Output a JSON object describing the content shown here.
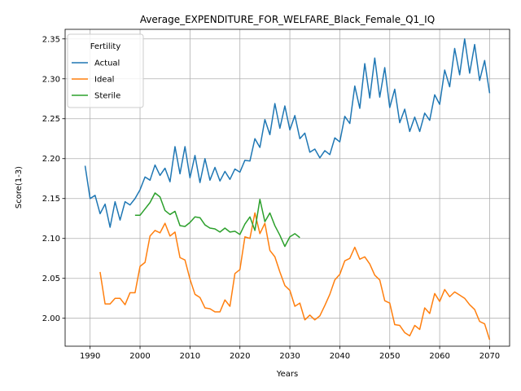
{
  "chart_data": {
    "type": "line",
    "title": "Average_EXPENDITURE_FOR_WELFARE_Black_Female_Q1_IQ",
    "xlabel": "Years",
    "ylabel": "Score(1-3)",
    "xlim": [
      1985.0,
      2074.0
    ],
    "ylim": [
      1.965,
      2.362
    ],
    "xticks": [
      1990,
      2000,
      2010,
      2020,
      2030,
      2040,
      2050,
      2060,
      2070
    ],
    "yticks": [
      2.0,
      2.05,
      2.1,
      2.15,
      2.2,
      2.25,
      2.3,
      2.35
    ],
    "ytick_labels": [
      "2.00",
      "2.05",
      "2.10",
      "2.15",
      "2.20",
      "2.25",
      "2.30",
      "2.35"
    ],
    "grid": true,
    "legend": {
      "title": "Fertility",
      "position": "top-left"
    },
    "series": [
      {
        "name": "Actual",
        "color": "#1f77b4",
        "x": [
          1989,
          1990,
          1991,
          1992,
          1993,
          1994,
          1995,
          1996,
          1997,
          1998,
          1999,
          2000,
          2001,
          2002,
          2003,
          2004,
          2005,
          2006,
          2007,
          2008,
          2009,
          2010,
          2011,
          2012,
          2013,
          2014,
          2015,
          2016,
          2017,
          2018,
          2019,
          2020,
          2021,
          2022,
          2023,
          2024,
          2025,
          2026,
          2027,
          2028,
          2029,
          2030,
          2031,
          2032,
          2033,
          2034,
          2035,
          2036,
          2037,
          2038,
          2039,
          2040,
          2041,
          2042,
          2043,
          2044,
          2045,
          2046,
          2047,
          2048,
          2049,
          2050,
          2051,
          2052,
          2053,
          2054,
          2055,
          2056,
          2057,
          2058,
          2059,
          2060,
          2061,
          2062,
          2063,
          2064,
          2065,
          2066,
          2067,
          2068,
          2069,
          2070
        ],
        "y": [
          2.191,
          2.15,
          2.154,
          2.131,
          2.143,
          2.114,
          2.146,
          2.123,
          2.146,
          2.142,
          2.15,
          2.161,
          2.177,
          2.173,
          2.192,
          2.179,
          2.188,
          2.171,
          2.215,
          2.181,
          2.215,
          2.176,
          2.204,
          2.17,
          2.2,
          2.173,
          2.189,
          2.172,
          2.184,
          2.174,
          2.187,
          2.183,
          2.198,
          2.197,
          2.225,
          2.214,
          2.249,
          2.23,
          2.269,
          2.238,
          2.266,
          2.236,
          2.254,
          2.225,
          2.232,
          2.208,
          2.212,
          2.201,
          2.21,
          2.205,
          2.226,
          2.221,
          2.253,
          2.244,
          2.291,
          2.263,
          2.319,
          2.276,
          2.326,
          2.277,
          2.314,
          2.264,
          2.287,
          2.245,
          2.262,
          2.234,
          2.252,
          2.234,
          2.257,
          2.248,
          2.28,
          2.268,
          2.311,
          2.29,
          2.338,
          2.305,
          2.35,
          2.307,
          2.343,
          2.298,
          2.323,
          2.282
        ]
      },
      {
        "name": "Ideal",
        "color": "#ff7f0e",
        "x": [
          1992,
          1993,
          1994,
          1995,
          1996,
          1997,
          1998,
          1999,
          2000,
          2001,
          2002,
          2003,
          2004,
          2005,
          2006,
          2007,
          2008,
          2009,
          2010,
          2011,
          2012,
          2013,
          2014,
          2015,
          2016,
          2017,
          2018,
          2019,
          2020,
          2021,
          2022,
          2023,
          2024,
          2025,
          2026,
          2027,
          2028,
          2029,
          2030,
          2031,
          2032,
          2033,
          2034,
          2035,
          2036,
          2037,
          2038,
          2039,
          2040,
          2041,
          2042,
          2043,
          2044,
          2045,
          2046,
          2047,
          2048,
          2049,
          2050,
          2051,
          2052,
          2053,
          2054,
          2055,
          2056,
          2057,
          2058,
          2059,
          2060,
          2061,
          2062,
          2063,
          2064,
          2065,
          2066,
          2067,
          2068,
          2069,
          2070
        ],
        "y": [
          2.058,
          2.018,
          2.018,
          2.025,
          2.025,
          2.017,
          2.032,
          2.032,
          2.065,
          2.07,
          2.103,
          2.11,
          2.107,
          2.119,
          2.103,
          2.108,
          2.076,
          2.073,
          2.049,
          2.03,
          2.026,
          2.013,
          2.012,
          2.008,
          2.008,
          2.023,
          2.015,
          2.056,
          2.061,
          2.102,
          2.1,
          2.132,
          2.106,
          2.119,
          2.085,
          2.077,
          2.058,
          2.041,
          2.035,
          2.015,
          2.019,
          1.998,
          2.004,
          1.998,
          2.003,
          2.016,
          2.03,
          2.048,
          2.055,
          2.072,
          2.075,
          2.089,
          2.074,
          2.077,
          2.068,
          2.054,
          2.048,
          2.022,
          2.019,
          1.992,
          1.991,
          1.982,
          1.978,
          1.991,
          1.986,
          2.013,
          2.006,
          2.031,
          2.021,
          2.036,
          2.027,
          2.033,
          2.029,
          2.025,
          2.017,
          2.011,
          1.996,
          1.993,
          1.973
        ]
      },
      {
        "name": "Sterile",
        "color": "#2ca02c",
        "x": [
          1999,
          2000,
          2001,
          2002,
          2003,
          2004,
          2005,
          2006,
          2007,
          2008,
          2009,
          2010,
          2011,
          2012,
          2013,
          2014,
          2015,
          2016,
          2017,
          2018,
          2019,
          2020,
          2021,
          2022,
          2023,
          2024,
          2025,
          2026,
          2027,
          2028,
          2029,
          2030,
          2031,
          2032
        ],
        "y": [
          2.129,
          2.129,
          2.137,
          2.145,
          2.157,
          2.152,
          2.135,
          2.13,
          2.134,
          2.116,
          2.115,
          2.12,
          2.127,
          2.126,
          2.117,
          2.113,
          2.112,
          2.108,
          2.113,
          2.108,
          2.109,
          2.105,
          2.118,
          2.127,
          2.11,
          2.149,
          2.121,
          2.132,
          2.116,
          2.104,
          2.09,
          2.102,
          2.106,
          2.101
        ]
      }
    ]
  }
}
